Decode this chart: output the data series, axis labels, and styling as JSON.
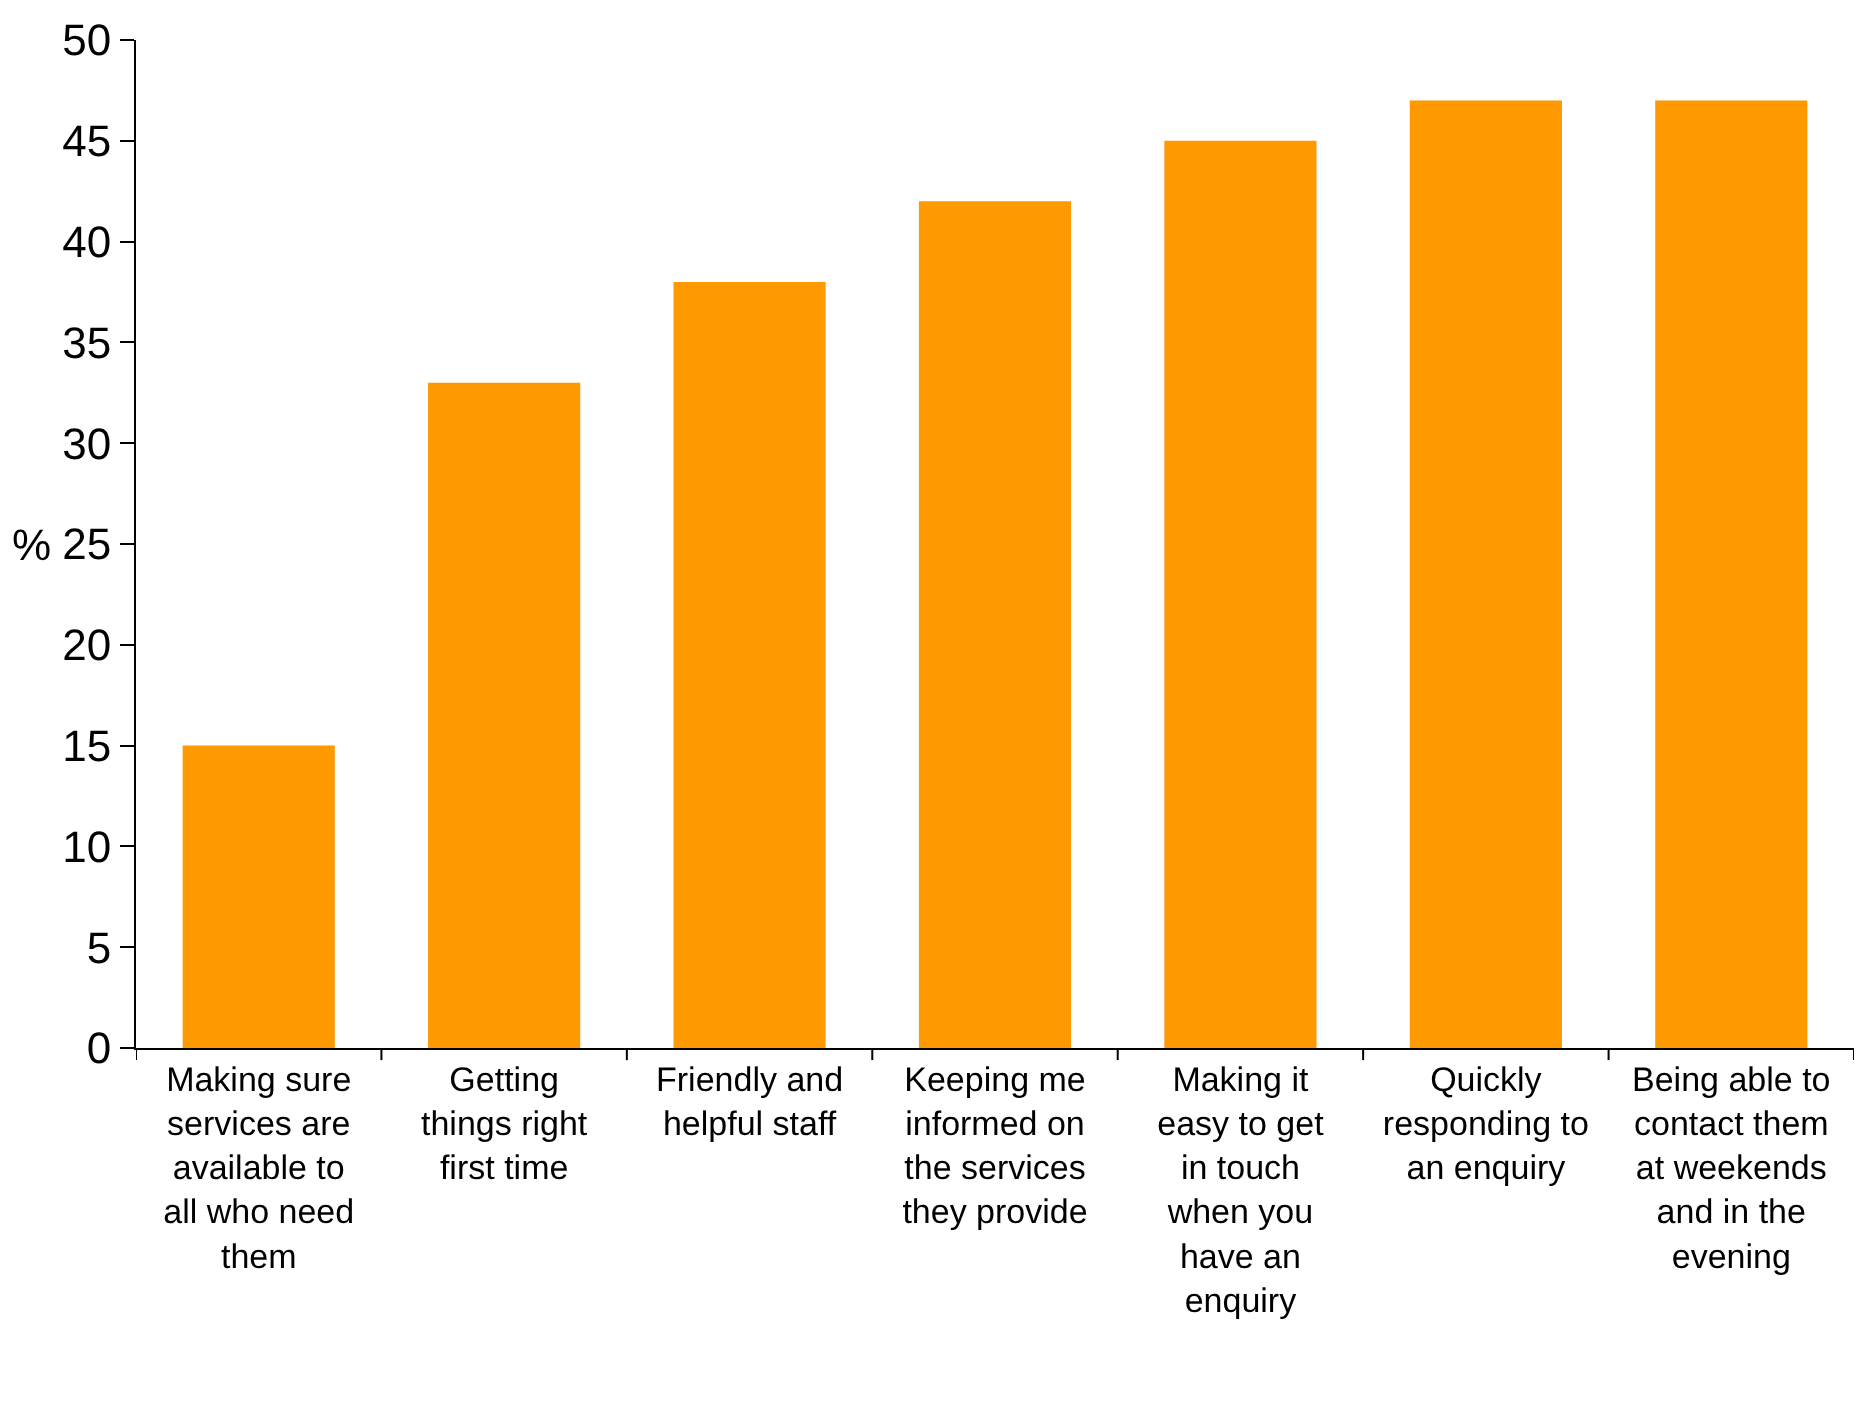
{
  "chart_data": {
    "type": "bar",
    "ylabel": "%",
    "categories": [
      "Making sure\nservices are\navailable to\nall who need\nthem",
      "Getting\nthings right\nfirst time",
      "Friendly and\nhelpful staff",
      "Keeping me\ninformed on\nthe services\nthey provide",
      "Making it\neasy to get\nin touch\nwhen you\nhave an\nenquiry",
      "Quickly\nresponding to\nan enquiry",
      "Being able to\ncontact them\nat weekends\nand in the\nevening"
    ],
    "values": [
      15,
      33,
      38,
      42,
      45,
      47,
      47
    ],
    "color": "#ff9900",
    "ylim": [
      0,
      50
    ],
    "yticks": [
      0,
      5,
      10,
      15,
      20,
      25,
      30,
      35,
      40,
      45,
      50
    ]
  }
}
